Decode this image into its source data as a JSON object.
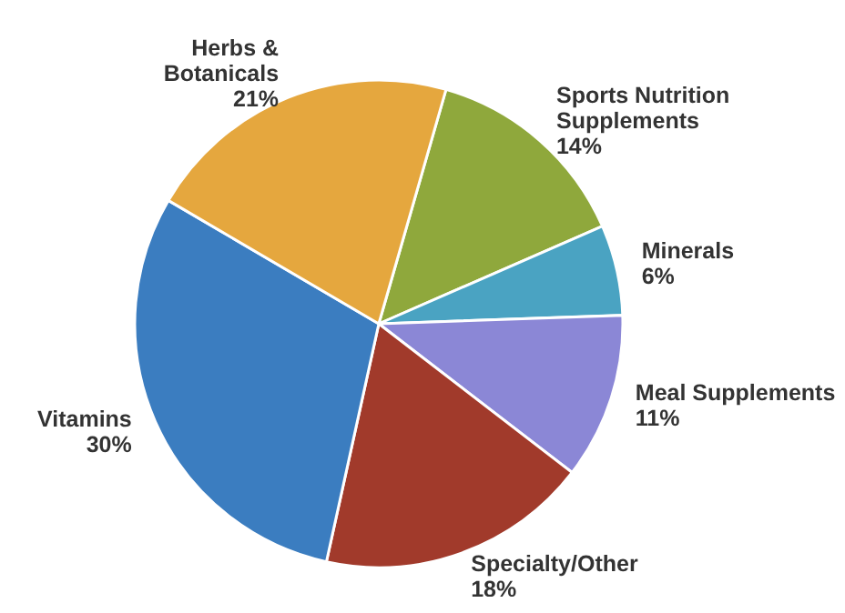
{
  "chart_data": {
    "type": "pie",
    "categories": [
      "Sports Nutrition Supplements",
      "Minerals",
      "Meal Supplements",
      "Specialty/Other",
      "Vitamins",
      "Herbs & Botanicals"
    ],
    "values": [
      14,
      6,
      11,
      18,
      30,
      21
    ],
    "colors": [
      "#8fa83c",
      "#4aa3c2",
      "#8b87d6",
      "#a13a2b",
      "#3b7dc0",
      "#e5a73e"
    ],
    "value_labels": [
      "14%",
      "6%",
      "11%",
      "18%",
      "30%",
      "21%"
    ]
  }
}
